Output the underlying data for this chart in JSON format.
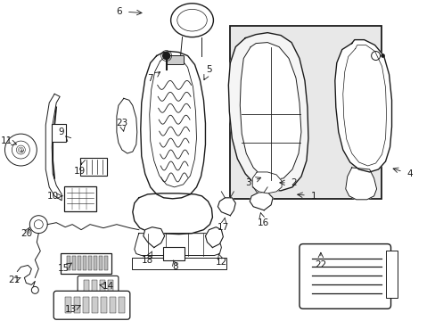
{
  "bg_color": "#ffffff",
  "line_color": "#1a1a1a",
  "box_bg": "#e8e8e8",
  "fig_width": 4.89,
  "fig_height": 3.6,
  "dpi": 100
}
